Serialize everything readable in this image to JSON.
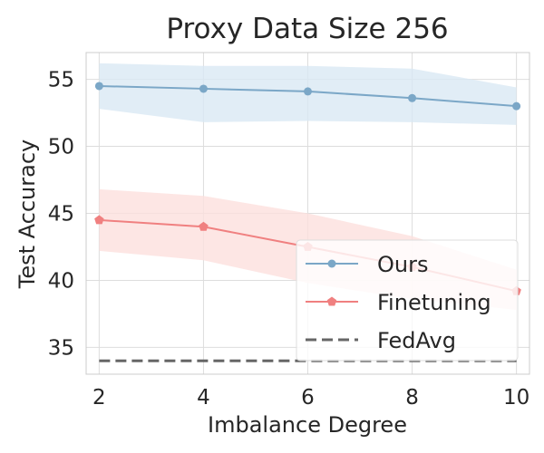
{
  "chart_data": {
    "type": "line",
    "title": "Proxy Data Size 256",
    "xlabel": "Imbalance Degree",
    "ylabel": "Test Accuracy",
    "x": [
      2,
      4,
      6,
      8,
      10
    ],
    "xticks": [
      "2",
      "4",
      "6",
      "8",
      "10"
    ],
    "yticks": [
      "35",
      "40",
      "45",
      "50",
      "55"
    ],
    "xlim": [
      1.75,
      10.25
    ],
    "ylim": [
      33,
      57
    ],
    "grid": true,
    "legend_position": "lower-right",
    "series": [
      {
        "name": "Ours",
        "color": "#7ba7c7",
        "band_color": "#dae8f4",
        "marker": "circle",
        "values": [
          54.5,
          54.3,
          54.1,
          53.6,
          53.0
        ],
        "lower": [
          52.8,
          51.8,
          51.9,
          51.8,
          51.6
        ],
        "upper": [
          56.2,
          56.0,
          56.0,
          55.8,
          54.4
        ]
      },
      {
        "name": "Finetuning",
        "color": "#f08080",
        "band_color": "#fde0dd",
        "marker": "pentagon",
        "values": [
          44.5,
          44.0,
          42.5,
          41.0,
          39.2
        ],
        "lower": [
          42.2,
          41.5,
          39.8,
          38.6,
          37.8
        ],
        "upper": [
          46.8,
          46.3,
          45.0,
          43.3,
          40.8
        ]
      },
      {
        "name": "FedAvg",
        "color": "#666666",
        "dash": true,
        "values": [
          34.0,
          34.0,
          34.0,
          34.0,
          34.0
        ]
      }
    ]
  }
}
